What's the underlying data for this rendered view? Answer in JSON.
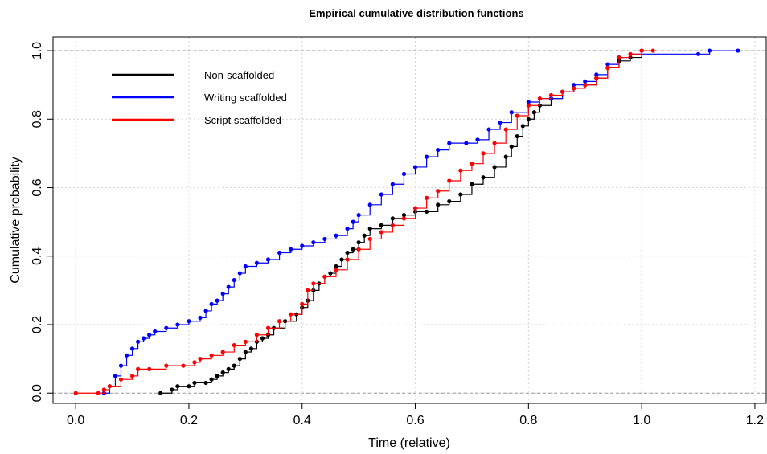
{
  "chart_data": {
    "type": "line",
    "title": "Empirical cumulative distribution functions",
    "xlabel": "Time (relative)",
    "ylabel": "Cumulative probability",
    "xlim": [
      -0.04,
      1.22
    ],
    "ylim": [
      -0.03,
      1.04
    ],
    "x_ticks": [
      0.0,
      0.2,
      0.4,
      0.6,
      0.8,
      1.0,
      1.2
    ],
    "x_tick_labels": [
      "0.0",
      "0.2",
      "0.4",
      "0.6",
      "0.8",
      "1.0",
      "1.2"
    ],
    "y_ticks": [
      0.0,
      0.2,
      0.4,
      0.6,
      0.8,
      1.0
    ],
    "y_tick_labels": [
      "0.0",
      "0.2",
      "0.4",
      "0.6",
      "0.8",
      "1.0"
    ],
    "grid": true,
    "legend_position": "top-left",
    "series": [
      {
        "name": "Non-scaffolded",
        "color": "#000000",
        "points": [
          [
            0.15,
            0.0
          ],
          [
            0.17,
            0.01
          ],
          [
            0.18,
            0.02
          ],
          [
            0.2,
            0.02
          ],
          [
            0.21,
            0.03
          ],
          [
            0.23,
            0.03
          ],
          [
            0.24,
            0.04
          ],
          [
            0.25,
            0.05
          ],
          [
            0.26,
            0.06
          ],
          [
            0.27,
            0.07
          ],
          [
            0.28,
            0.08
          ],
          [
            0.29,
            0.1
          ],
          [
            0.3,
            0.12
          ],
          [
            0.31,
            0.13
          ],
          [
            0.32,
            0.15
          ],
          [
            0.33,
            0.16
          ],
          [
            0.34,
            0.17
          ],
          [
            0.35,
            0.19
          ],
          [
            0.37,
            0.21
          ],
          [
            0.39,
            0.23
          ],
          [
            0.4,
            0.25
          ],
          [
            0.41,
            0.27
          ],
          [
            0.42,
            0.3
          ],
          [
            0.43,
            0.32
          ],
          [
            0.44,
            0.34
          ],
          [
            0.45,
            0.35
          ],
          [
            0.46,
            0.37
          ],
          [
            0.47,
            0.39
          ],
          [
            0.48,
            0.41
          ],
          [
            0.49,
            0.42
          ],
          [
            0.5,
            0.44
          ],
          [
            0.51,
            0.46
          ],
          [
            0.52,
            0.48
          ],
          [
            0.54,
            0.49
          ],
          [
            0.56,
            0.51
          ],
          [
            0.58,
            0.52
          ],
          [
            0.6,
            0.53
          ],
          [
            0.62,
            0.53
          ],
          [
            0.64,
            0.55
          ],
          [
            0.66,
            0.56
          ],
          [
            0.68,
            0.58
          ],
          [
            0.7,
            0.61
          ],
          [
            0.72,
            0.63
          ],
          [
            0.74,
            0.66
          ],
          [
            0.76,
            0.69
          ],
          [
            0.77,
            0.72
          ],
          [
            0.78,
            0.75
          ],
          [
            0.79,
            0.78
          ],
          [
            0.8,
            0.8
          ],
          [
            0.81,
            0.82
          ],
          [
            0.82,
            0.84
          ],
          [
            0.84,
            0.86
          ],
          [
            0.86,
            0.88
          ],
          [
            0.88,
            0.89
          ],
          [
            0.9,
            0.9
          ],
          [
            0.92,
            0.92
          ],
          [
            0.94,
            0.95
          ],
          [
            0.96,
            0.97
          ],
          [
            0.98,
            0.98
          ],
          [
            1.0,
            1.0
          ]
        ]
      },
      {
        "name": "Writing scaffolded",
        "color": "#0000ff",
        "points": [
          [
            0.05,
            0.0
          ],
          [
            0.06,
            0.02
          ],
          [
            0.07,
            0.05
          ],
          [
            0.08,
            0.08
          ],
          [
            0.09,
            0.11
          ],
          [
            0.1,
            0.13
          ],
          [
            0.11,
            0.15
          ],
          [
            0.12,
            0.16
          ],
          [
            0.13,
            0.17
          ],
          [
            0.14,
            0.18
          ],
          [
            0.16,
            0.19
          ],
          [
            0.18,
            0.2
          ],
          [
            0.2,
            0.21
          ],
          [
            0.22,
            0.22
          ],
          [
            0.23,
            0.24
          ],
          [
            0.24,
            0.26
          ],
          [
            0.25,
            0.27
          ],
          [
            0.26,
            0.29
          ],
          [
            0.27,
            0.31
          ],
          [
            0.28,
            0.33
          ],
          [
            0.29,
            0.35
          ],
          [
            0.3,
            0.37
          ],
          [
            0.32,
            0.38
          ],
          [
            0.34,
            0.39
          ],
          [
            0.36,
            0.41
          ],
          [
            0.38,
            0.42
          ],
          [
            0.4,
            0.43
          ],
          [
            0.42,
            0.44
          ],
          [
            0.44,
            0.45
          ],
          [
            0.46,
            0.46
          ],
          [
            0.48,
            0.48
          ],
          [
            0.49,
            0.5
          ],
          [
            0.5,
            0.52
          ],
          [
            0.52,
            0.55
          ],
          [
            0.54,
            0.58
          ],
          [
            0.56,
            0.61
          ],
          [
            0.58,
            0.64
          ],
          [
            0.6,
            0.66
          ],
          [
            0.62,
            0.69
          ],
          [
            0.64,
            0.71
          ],
          [
            0.66,
            0.73
          ],
          [
            0.69,
            0.73
          ],
          [
            0.71,
            0.74
          ],
          [
            0.73,
            0.77
          ],
          [
            0.75,
            0.79
          ],
          [
            0.77,
            0.82
          ],
          [
            0.8,
            0.85
          ],
          [
            0.82,
            0.86
          ],
          [
            0.84,
            0.86
          ],
          [
            0.86,
            0.88
          ],
          [
            0.88,
            0.9
          ],
          [
            0.9,
            0.91
          ],
          [
            0.92,
            0.93
          ],
          [
            0.94,
            0.96
          ],
          [
            0.96,
            0.98
          ],
          [
            0.98,
            0.99
          ],
          [
            1.1,
            0.99
          ],
          [
            1.12,
            1.0
          ],
          [
            1.17,
            1.0
          ]
        ]
      },
      {
        "name": "Script scaffolded",
        "color": "#ff0000",
        "points": [
          [
            0.0,
            0.0
          ],
          [
            0.04,
            0.0
          ],
          [
            0.05,
            0.01
          ],
          [
            0.06,
            0.02
          ],
          [
            0.08,
            0.04
          ],
          [
            0.1,
            0.05
          ],
          [
            0.11,
            0.07
          ],
          [
            0.13,
            0.07
          ],
          [
            0.16,
            0.08
          ],
          [
            0.19,
            0.08
          ],
          [
            0.21,
            0.09
          ],
          [
            0.22,
            0.1
          ],
          [
            0.24,
            0.11
          ],
          [
            0.26,
            0.12
          ],
          [
            0.28,
            0.14
          ],
          [
            0.3,
            0.15
          ],
          [
            0.32,
            0.17
          ],
          [
            0.34,
            0.19
          ],
          [
            0.36,
            0.21
          ],
          [
            0.38,
            0.23
          ],
          [
            0.4,
            0.26
          ],
          [
            0.41,
            0.3
          ],
          [
            0.42,
            0.32
          ],
          [
            0.44,
            0.34
          ],
          [
            0.46,
            0.36
          ],
          [
            0.48,
            0.39
          ],
          [
            0.5,
            0.42
          ],
          [
            0.52,
            0.45
          ],
          [
            0.54,
            0.47
          ],
          [
            0.56,
            0.49
          ],
          [
            0.58,
            0.51
          ],
          [
            0.6,
            0.54
          ],
          [
            0.62,
            0.57
          ],
          [
            0.64,
            0.59
          ],
          [
            0.66,
            0.62
          ],
          [
            0.68,
            0.65
          ],
          [
            0.7,
            0.67
          ],
          [
            0.72,
            0.7
          ],
          [
            0.74,
            0.73
          ],
          [
            0.76,
            0.77
          ],
          [
            0.78,
            0.81
          ],
          [
            0.8,
            0.84
          ],
          [
            0.82,
            0.86
          ],
          [
            0.84,
            0.87
          ],
          [
            0.86,
            0.88
          ],
          [
            0.88,
            0.89
          ],
          [
            0.9,
            0.9
          ],
          [
            0.92,
            0.92
          ],
          [
            0.94,
            0.95
          ],
          [
            0.96,
            0.98
          ],
          [
            0.98,
            0.99
          ],
          [
            1.0,
            1.0
          ],
          [
            1.02,
            1.0
          ]
        ]
      }
    ]
  }
}
